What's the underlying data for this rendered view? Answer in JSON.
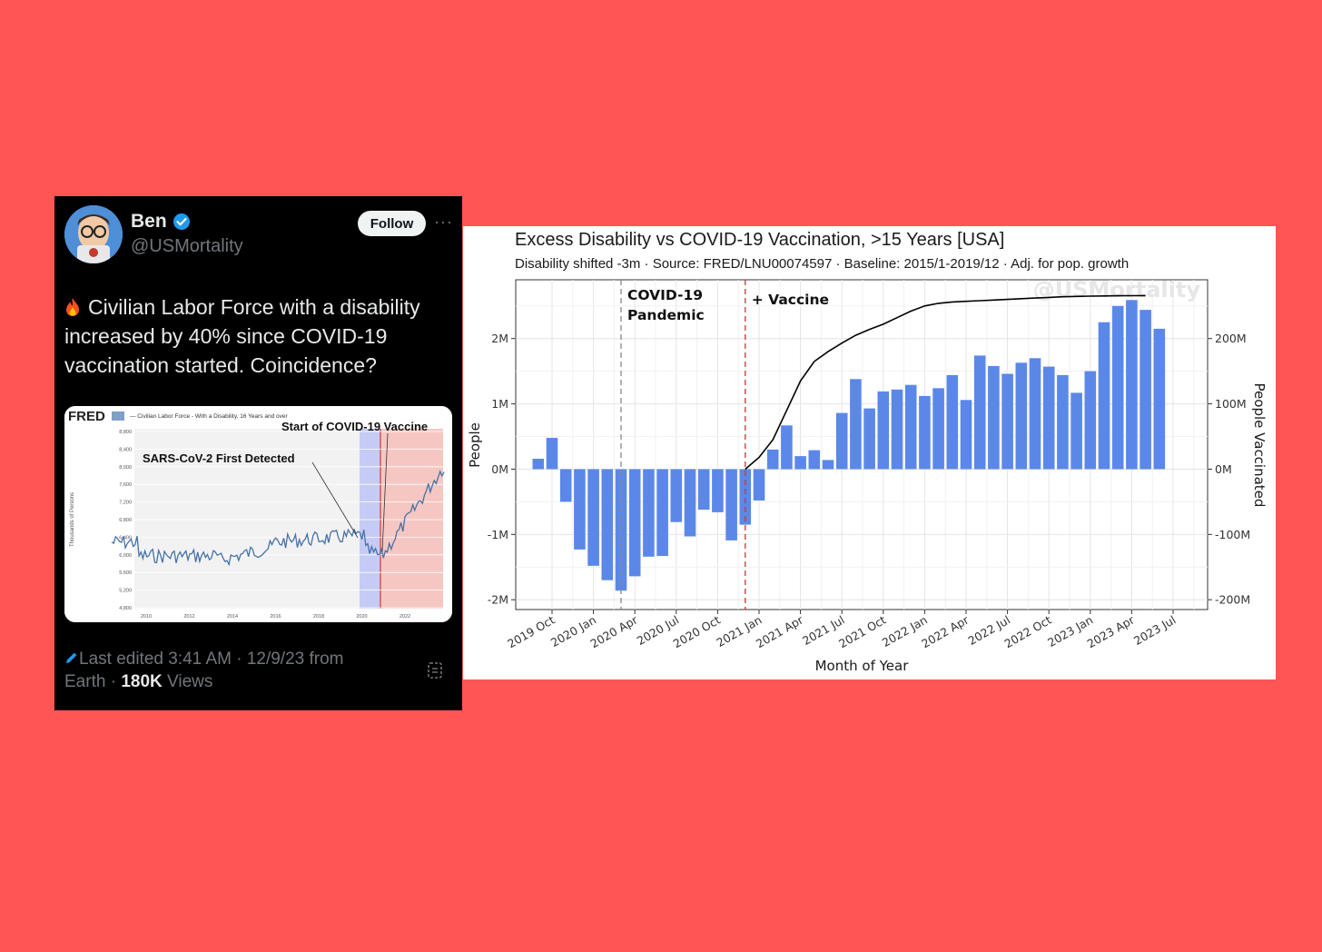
{
  "tweet": {
    "name": "Ben",
    "handle": "@USMortality",
    "follow_label": "Follow",
    "more_label": "···",
    "text": "Civilian Labor Force with a disability increased by 40% since COVID-19 vaccination started. Coincidence?",
    "footer_edited": "Last edited 3:41 AM · 12/9/23  from",
    "footer_location": "Earth · ",
    "views_count": "180K",
    "views_label": " Views",
    "colors": {
      "background": "#000000",
      "text": "#e7e9ea",
      "muted": "#71767b",
      "verified": "#1d9bf0"
    }
  },
  "embedded_chart": {
    "logo": "FRED",
    "legend": "— Civilian Labor Force - With a Disability, 16 Years and over",
    "ylabel": "Thousands of Persons",
    "annotation_vaccine": "Start of COVID-19 Vaccine",
    "annotation_sars": "SARS-CoV-2 First Detected",
    "yticks": [
      "8,800",
      "8,400",
      "8,000",
      "7,600",
      "7,200",
      "6,800",
      "6,400",
      "6,000",
      "5,600",
      "5,200",
      "4,800"
    ],
    "xticks": [
      "2010",
      "2012",
      "2014",
      "2016",
      "2018",
      "2020",
      "2022"
    ],
    "line_color": "#4572a7"
  },
  "chart_data": {
    "type": "bar",
    "title": "Excess Disability vs COVID-19 Vaccination, >15 Years [USA]",
    "subtitle": "Disability shifted -3m · Source: FRED/LNU00074597 · Baseline: 2015/1-2019/12 · Adj. for pop. growth",
    "xlabel": "Month of Year",
    "ylabel": "People",
    "y2label": "People Vaccinated",
    "watermark": "@USMortality",
    "ylim": [
      -2150000,
      2900000
    ],
    "y2lim": [
      -215000000,
      290000000
    ],
    "yticks": [
      {
        "v": 2000000,
        "label": "2M"
      },
      {
        "v": 1000000,
        "label": "1M"
      },
      {
        "v": 0,
        "label": "0M"
      },
      {
        "v": -1000000,
        "label": "-1M"
      },
      {
        "v": -2000000,
        "label": "-2M"
      }
    ],
    "y2ticks": [
      {
        "v": 200000000,
        "label": "200M"
      },
      {
        "v": 100000000,
        "label": "100M"
      },
      {
        "v": 0,
        "label": "0M"
      },
      {
        "v": -100000000,
        "label": "-100M"
      },
      {
        "v": -200000000,
        "label": "-200M"
      }
    ],
    "xticks": [
      "2019 Oct",
      "2020 Jan",
      "2020 Apr",
      "2020 Jul",
      "2020 Oct",
      "2021 Jan",
      "2021 Apr",
      "2021 Jul",
      "2021 Oct",
      "2022 Jan",
      "2022 Apr",
      "2022 Jul",
      "2022 Oct",
      "2023 Jan",
      "2023 Apr",
      "2023 Jul"
    ],
    "bar_color": "#5b88e8",
    "line_color": "#000000",
    "grid": true,
    "annotations": [
      {
        "text_lines": [
          "COVID-19",
          "Pandemic"
        ],
        "at": "2020 Mar",
        "line_color": "#888888"
      },
      {
        "text_lines": [
          "+ Vaccine"
        ],
        "at": "2020 Dec",
        "line_color": "#cc3333"
      }
    ],
    "series": [
      {
        "type": "bar",
        "categories": [
          "2019 Sep",
          "2019 Oct",
          "2019 Nov",
          "2019 Dec",
          "2020 Jan",
          "2020 Feb",
          "2020 Mar",
          "2020 Apr",
          "2020 May",
          "2020 Jun",
          "2020 Jul",
          "2020 Aug",
          "2020 Sep",
          "2020 Oct",
          "2020 Nov",
          "2020 Dec",
          "2021 Jan",
          "2021 Feb",
          "2021 Mar",
          "2021 Apr",
          "2021 May",
          "2021 Jun",
          "2021 Jul",
          "2021 Aug",
          "2021 Sep",
          "2021 Oct",
          "2021 Nov",
          "2021 Dec",
          "2022 Jan",
          "2022 Feb",
          "2022 Mar",
          "2022 Apr",
          "2022 May",
          "2022 Jun",
          "2022 Jul",
          "2022 Aug",
          "2022 Sep",
          "2022 Oct",
          "2022 Nov",
          "2022 Dec",
          "2023 Jan",
          "2023 Feb",
          "2023 Mar",
          "2023 Apr",
          "2023 May",
          "2023 Jun"
        ],
        "values": [
          160000,
          480000,
          -500000,
          -1230000,
          -1480000,
          -1700000,
          -1860000,
          -1640000,
          -1340000,
          -1330000,
          -810000,
          -1030000,
          -620000,
          -660000,
          -1090000,
          -850000,
          -480000,
          300000,
          670000,
          200000,
          290000,
          140000,
          860000,
          1380000,
          930000,
          1190000,
          1220000,
          1290000,
          1120000,
          1240000,
          1440000,
          1060000,
          1740000,
          1580000,
          1460000,
          1630000,
          1700000,
          1570000,
          1440000,
          1170000,
          1500000,
          2250000,
          2500000,
          2590000,
          2440000,
          2150000
        ]
      },
      {
        "type": "line",
        "categories": [
          "2020 Dec",
          "2021 Jan",
          "2021 Feb",
          "2021 Mar",
          "2021 Apr",
          "2021 May",
          "2021 Jun",
          "2021 Jul",
          "2021 Aug",
          "2021 Sep",
          "2021 Oct",
          "2021 Nov",
          "2021 Dec",
          "2022 Jan",
          "2022 Feb",
          "2022 Mar",
          "2022 Apr",
          "2022 May",
          "2022 Jun",
          "2022 Jul",
          "2022 Aug",
          "2022 Sep",
          "2022 Oct",
          "2022 Nov",
          "2022 Dec",
          "2023 Jan",
          "2023 Feb",
          "2023 Mar",
          "2023 Apr",
          "2023 May"
        ],
        "values": [
          0,
          18000000,
          45000000,
          90000000,
          135000000,
          165000000,
          180000000,
          193000000,
          205000000,
          214000000,
          222000000,
          232000000,
          242000000,
          250000000,
          254000000,
          256000000,
          257000000,
          258000000,
          259000000,
          260000000,
          261000000,
          262000000,
          263000000,
          264000000,
          264500000,
          265000000,
          265300000,
          265500000,
          265700000,
          265800000
        ]
      }
    ]
  }
}
